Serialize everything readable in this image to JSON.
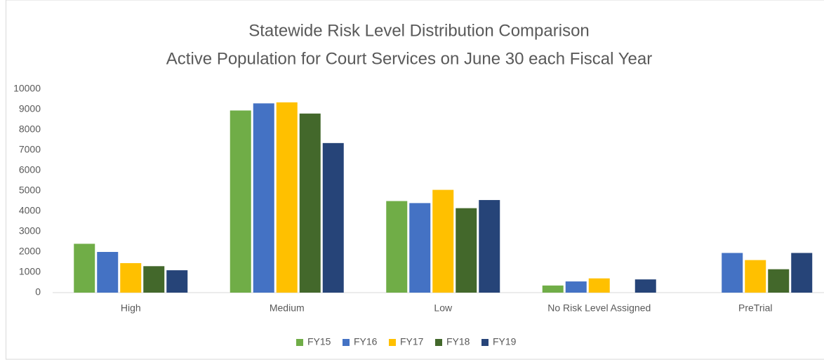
{
  "chart_data": {
    "type": "bar",
    "title": "Statewide Risk Level Distribution Comparison",
    "subtitle": "Active Population for Court Services on June 30 each Fiscal Year",
    "categories": [
      "High",
      "Medium",
      "Low",
      "No Risk Level Assigned",
      "PreTrial"
    ],
    "series": [
      {
        "name": "FY15",
        "color": "#70ad47",
        "values": [
          2400,
          8950,
          4500,
          350,
          null
        ]
      },
      {
        "name": "FY16",
        "color": "#4472c4",
        "values": [
          2000,
          9300,
          4400,
          550,
          1950
        ]
      },
      {
        "name": "FY17",
        "color": "#ffc000",
        "values": [
          1450,
          9350,
          5050,
          700,
          1600
        ]
      },
      {
        "name": "FY18",
        "color": "#43682b",
        "values": [
          1300,
          8800,
          4150,
          null,
          1150
        ]
      },
      {
        "name": "FY19",
        "color": "#264478",
        "values": [
          1100,
          7350,
          4550,
          650,
          1950
        ]
      }
    ],
    "ylim": [
      0,
      10000
    ],
    "yticks": [
      0,
      1000,
      2000,
      3000,
      4000,
      5000,
      6000,
      7000,
      8000,
      9000,
      10000
    ],
    "grid": false,
    "legend": "bottom"
  }
}
